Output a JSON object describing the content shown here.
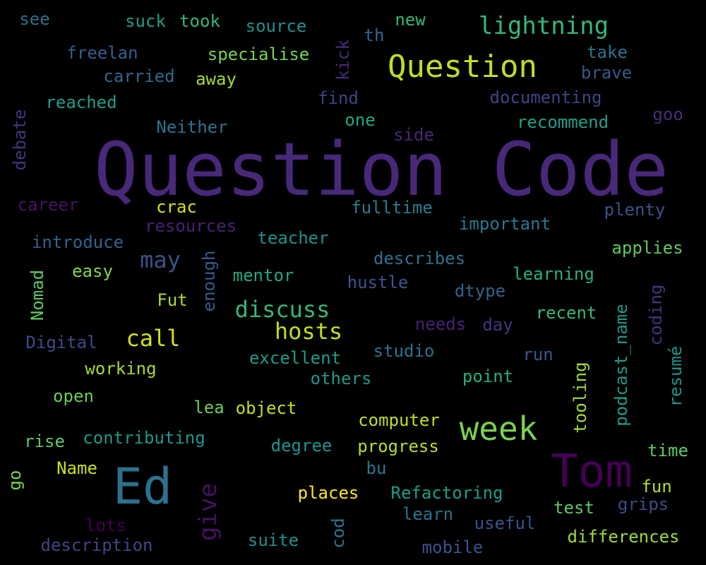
{
  "words": [
    {
      "text": "Question Code",
      "color": "#482878"
    },
    {
      "text": "Question",
      "color": "#bddf26"
    },
    {
      "text": "week",
      "color": "#7ad151"
    },
    {
      "text": "Tom",
      "color": "#440154"
    },
    {
      "text": "Ed",
      "color": "#2c728e"
    },
    {
      "text": "lightning",
      "color": "#35b779"
    },
    {
      "text": "discuss",
      "color": "#35b779"
    },
    {
      "text": "hosts",
      "color": "#bddf26"
    },
    {
      "text": "call",
      "color": "#d2e21b"
    },
    {
      "text": "may",
      "color": "#3b528b"
    },
    {
      "text": "see",
      "color": "#2c728e"
    },
    {
      "text": "suck",
      "color": "#1f9e89"
    },
    {
      "text": "took",
      "color": "#35b779"
    },
    {
      "text": "source",
      "color": "#21918c"
    },
    {
      "text": "new",
      "color": "#35b779"
    },
    {
      "text": "th",
      "color": "#31688e"
    },
    {
      "text": "kick",
      "color": "#472c7a"
    },
    {
      "text": "freelan",
      "color": "#355f8d"
    },
    {
      "text": "specialise",
      "color": "#7ad151"
    },
    {
      "text": "take",
      "color": "#2c728e"
    },
    {
      "text": "carried",
      "color": "#31688e"
    },
    {
      "text": "away",
      "color": "#a5db36"
    },
    {
      "text": "brave",
      "color": "#38598c"
    },
    {
      "text": "reached",
      "color": "#1f9e89"
    },
    {
      "text": "find",
      "color": "#404387"
    },
    {
      "text": "documenting",
      "color": "#414487"
    },
    {
      "text": "debate",
      "color": "#46327e"
    },
    {
      "text": "one",
      "color": "#22a884"
    },
    {
      "text": "goo",
      "color": "#472d7b"
    },
    {
      "text": "Neither",
      "color": "#2c728e"
    },
    {
      "text": "side",
      "color": "#482878"
    },
    {
      "text": "recommend",
      "color": "#1fa187"
    },
    {
      "text": "career",
      "color": "#471164"
    },
    {
      "text": "crac",
      "color": "#d8e219"
    },
    {
      "text": "fulltime",
      "color": "#277f8e"
    },
    {
      "text": "plenty",
      "color": "#3b528b"
    },
    {
      "text": "resources",
      "color": "#482173"
    },
    {
      "text": "important",
      "color": "#2a788e"
    },
    {
      "text": "introduce",
      "color": "#33638d"
    },
    {
      "text": "teacher",
      "color": "#21918c"
    },
    {
      "text": "applies",
      "color": "#5ec962"
    },
    {
      "text": "describes",
      "color": "#2c718e"
    },
    {
      "text": "easy",
      "color": "#86d549"
    },
    {
      "text": "enough",
      "color": "#38598c"
    },
    {
      "text": "mentor",
      "color": "#22a884"
    },
    {
      "text": "learning",
      "color": "#29af7f"
    },
    {
      "text": "Nomad",
      "color": "#5ec962"
    },
    {
      "text": "hustle",
      "color": "#3a548c"
    },
    {
      "text": "dtype",
      "color": "#33638d"
    },
    {
      "text": "coding",
      "color": "#46337f"
    },
    {
      "text": "Fut",
      "color": "#a8db34"
    },
    {
      "text": "recent",
      "color": "#35b779"
    },
    {
      "text": "podcast_name",
      "color": "#1f9a8a"
    },
    {
      "text": "needs",
      "color": "#482173"
    },
    {
      "text": "day",
      "color": "#453781"
    },
    {
      "text": "Digital",
      "color": "#3e4a89"
    },
    {
      "text": "studio",
      "color": "#2c728e"
    },
    {
      "text": "excellent",
      "color": "#1e9c89"
    },
    {
      "text": "run",
      "color": "#38598c"
    },
    {
      "text": "resumé",
      "color": "#20928c"
    },
    {
      "text": "working",
      "color": "#a8db34"
    },
    {
      "text": "others",
      "color": "#1f988b"
    },
    {
      "text": "point",
      "color": "#27ad81"
    },
    {
      "text": "tooling",
      "color": "#a0da39"
    },
    {
      "text": "open",
      "color": "#6ccd5a"
    },
    {
      "text": "lea",
      "color": "#6ece58"
    },
    {
      "text": "object",
      "color": "#c2df23"
    },
    {
      "text": "computer",
      "color": "#bddf26"
    },
    {
      "text": "rise",
      "color": "#5ec962"
    },
    {
      "text": "contributing",
      "color": "#1f988b"
    },
    {
      "text": "degree",
      "color": "#1f948c"
    },
    {
      "text": "progress",
      "color": "#b5de2b"
    },
    {
      "text": "time",
      "color": "#5ec962"
    },
    {
      "text": "go",
      "color": "#7ad151"
    },
    {
      "text": "Name",
      "color": "#c8e020"
    },
    {
      "text": "bu",
      "color": "#2a788e"
    },
    {
      "text": "fun",
      "color": "#b5de2b"
    },
    {
      "text": "give",
      "color": "#471063"
    },
    {
      "text": "places",
      "color": "#fde725"
    },
    {
      "text": "Refactoring",
      "color": "#1f9e89"
    },
    {
      "text": "grips",
      "color": "#3e4989"
    },
    {
      "text": "test",
      "color": "#5ec962"
    },
    {
      "text": "learn",
      "color": "#2c718e"
    },
    {
      "text": "useful",
      "color": "#3b528b"
    },
    {
      "text": "lots",
      "color": "#440154"
    },
    {
      "text": "cod",
      "color": "#2c728e"
    },
    {
      "text": "differences",
      "color": "#9fda3a"
    },
    {
      "text": "description",
      "color": "#414487"
    },
    {
      "text": "suite",
      "color": "#21918c"
    },
    {
      "text": "mobile",
      "color": "#3b528b"
    }
  ]
}
